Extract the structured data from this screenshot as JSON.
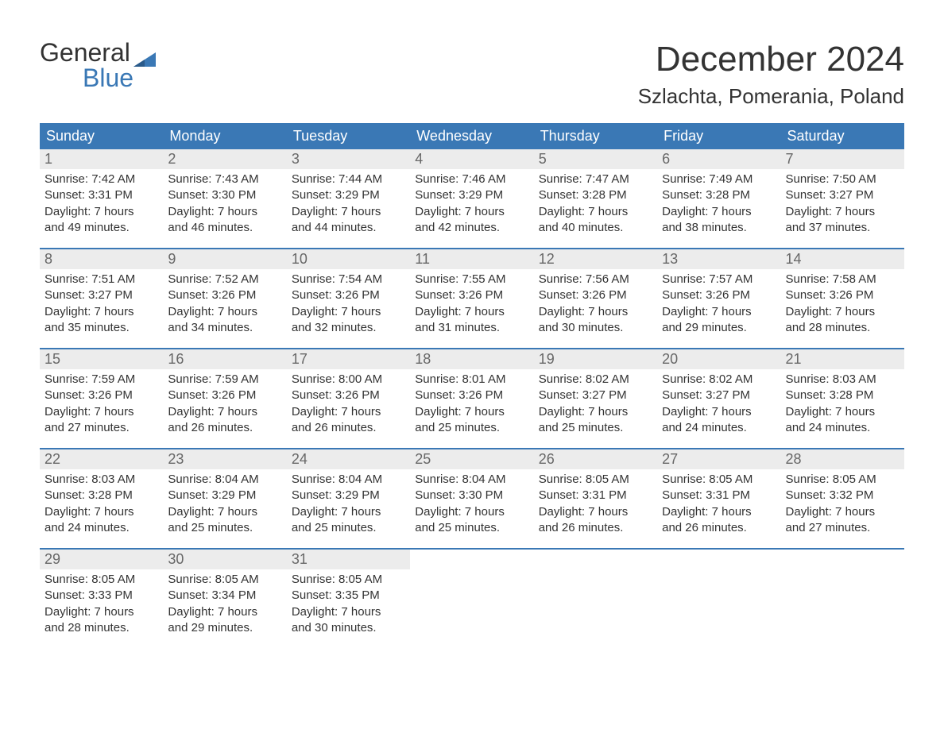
{
  "brand": {
    "word1": "General",
    "word2": "Blue",
    "accent_color": "#3a78b5"
  },
  "title": {
    "month_year": "December 2024",
    "location": "Szlachta, Pomerania, Poland"
  },
  "colors": {
    "header_bg": "#3a78b5",
    "header_text": "#ffffff",
    "daynum_bg": "#ececec",
    "daynum_text": "#676767",
    "body_text": "#333333",
    "page_bg": "#ffffff",
    "week_divider": "#3a78b5"
  },
  "typography": {
    "month_title_fontsize": 44,
    "location_fontsize": 26,
    "dayheader_fontsize": 18,
    "daynum_fontsize": 18,
    "body_fontsize": 15
  },
  "day_headers": [
    "Sunday",
    "Monday",
    "Tuesday",
    "Wednesday",
    "Thursday",
    "Friday",
    "Saturday"
  ],
  "weeks": [
    [
      {
        "num": "1",
        "sunrise": "Sunrise: 7:42 AM",
        "sunset": "Sunset: 3:31 PM",
        "dl1": "Daylight: 7 hours",
        "dl2": "and 49 minutes."
      },
      {
        "num": "2",
        "sunrise": "Sunrise: 7:43 AM",
        "sunset": "Sunset: 3:30 PM",
        "dl1": "Daylight: 7 hours",
        "dl2": "and 46 minutes."
      },
      {
        "num": "3",
        "sunrise": "Sunrise: 7:44 AM",
        "sunset": "Sunset: 3:29 PM",
        "dl1": "Daylight: 7 hours",
        "dl2": "and 44 minutes."
      },
      {
        "num": "4",
        "sunrise": "Sunrise: 7:46 AM",
        "sunset": "Sunset: 3:29 PM",
        "dl1": "Daylight: 7 hours",
        "dl2": "and 42 minutes."
      },
      {
        "num": "5",
        "sunrise": "Sunrise: 7:47 AM",
        "sunset": "Sunset: 3:28 PM",
        "dl1": "Daylight: 7 hours",
        "dl2": "and 40 minutes."
      },
      {
        "num": "6",
        "sunrise": "Sunrise: 7:49 AM",
        "sunset": "Sunset: 3:28 PM",
        "dl1": "Daylight: 7 hours",
        "dl2": "and 38 minutes."
      },
      {
        "num": "7",
        "sunrise": "Sunrise: 7:50 AM",
        "sunset": "Sunset: 3:27 PM",
        "dl1": "Daylight: 7 hours",
        "dl2": "and 37 minutes."
      }
    ],
    [
      {
        "num": "8",
        "sunrise": "Sunrise: 7:51 AM",
        "sunset": "Sunset: 3:27 PM",
        "dl1": "Daylight: 7 hours",
        "dl2": "and 35 minutes."
      },
      {
        "num": "9",
        "sunrise": "Sunrise: 7:52 AM",
        "sunset": "Sunset: 3:26 PM",
        "dl1": "Daylight: 7 hours",
        "dl2": "and 34 minutes."
      },
      {
        "num": "10",
        "sunrise": "Sunrise: 7:54 AM",
        "sunset": "Sunset: 3:26 PM",
        "dl1": "Daylight: 7 hours",
        "dl2": "and 32 minutes."
      },
      {
        "num": "11",
        "sunrise": "Sunrise: 7:55 AM",
        "sunset": "Sunset: 3:26 PM",
        "dl1": "Daylight: 7 hours",
        "dl2": "and 31 minutes."
      },
      {
        "num": "12",
        "sunrise": "Sunrise: 7:56 AM",
        "sunset": "Sunset: 3:26 PM",
        "dl1": "Daylight: 7 hours",
        "dl2": "and 30 minutes."
      },
      {
        "num": "13",
        "sunrise": "Sunrise: 7:57 AM",
        "sunset": "Sunset: 3:26 PM",
        "dl1": "Daylight: 7 hours",
        "dl2": "and 29 minutes."
      },
      {
        "num": "14",
        "sunrise": "Sunrise: 7:58 AM",
        "sunset": "Sunset: 3:26 PM",
        "dl1": "Daylight: 7 hours",
        "dl2": "and 28 minutes."
      }
    ],
    [
      {
        "num": "15",
        "sunrise": "Sunrise: 7:59 AM",
        "sunset": "Sunset: 3:26 PM",
        "dl1": "Daylight: 7 hours",
        "dl2": "and 27 minutes."
      },
      {
        "num": "16",
        "sunrise": "Sunrise: 7:59 AM",
        "sunset": "Sunset: 3:26 PM",
        "dl1": "Daylight: 7 hours",
        "dl2": "and 26 minutes."
      },
      {
        "num": "17",
        "sunrise": "Sunrise: 8:00 AM",
        "sunset": "Sunset: 3:26 PM",
        "dl1": "Daylight: 7 hours",
        "dl2": "and 26 minutes."
      },
      {
        "num": "18",
        "sunrise": "Sunrise: 8:01 AM",
        "sunset": "Sunset: 3:26 PM",
        "dl1": "Daylight: 7 hours",
        "dl2": "and 25 minutes."
      },
      {
        "num": "19",
        "sunrise": "Sunrise: 8:02 AM",
        "sunset": "Sunset: 3:27 PM",
        "dl1": "Daylight: 7 hours",
        "dl2": "and 25 minutes."
      },
      {
        "num": "20",
        "sunrise": "Sunrise: 8:02 AM",
        "sunset": "Sunset: 3:27 PM",
        "dl1": "Daylight: 7 hours",
        "dl2": "and 24 minutes."
      },
      {
        "num": "21",
        "sunrise": "Sunrise: 8:03 AM",
        "sunset": "Sunset: 3:28 PM",
        "dl1": "Daylight: 7 hours",
        "dl2": "and 24 minutes."
      }
    ],
    [
      {
        "num": "22",
        "sunrise": "Sunrise: 8:03 AM",
        "sunset": "Sunset: 3:28 PM",
        "dl1": "Daylight: 7 hours",
        "dl2": "and 24 minutes."
      },
      {
        "num": "23",
        "sunrise": "Sunrise: 8:04 AM",
        "sunset": "Sunset: 3:29 PM",
        "dl1": "Daylight: 7 hours",
        "dl2": "and 25 minutes."
      },
      {
        "num": "24",
        "sunrise": "Sunrise: 8:04 AM",
        "sunset": "Sunset: 3:29 PM",
        "dl1": "Daylight: 7 hours",
        "dl2": "and 25 minutes."
      },
      {
        "num": "25",
        "sunrise": "Sunrise: 8:04 AM",
        "sunset": "Sunset: 3:30 PM",
        "dl1": "Daylight: 7 hours",
        "dl2": "and 25 minutes."
      },
      {
        "num": "26",
        "sunrise": "Sunrise: 8:05 AM",
        "sunset": "Sunset: 3:31 PM",
        "dl1": "Daylight: 7 hours",
        "dl2": "and 26 minutes."
      },
      {
        "num": "27",
        "sunrise": "Sunrise: 8:05 AM",
        "sunset": "Sunset: 3:31 PM",
        "dl1": "Daylight: 7 hours",
        "dl2": "and 26 minutes."
      },
      {
        "num": "28",
        "sunrise": "Sunrise: 8:05 AM",
        "sunset": "Sunset: 3:32 PM",
        "dl1": "Daylight: 7 hours",
        "dl2": "and 27 minutes."
      }
    ],
    [
      {
        "num": "29",
        "sunrise": "Sunrise: 8:05 AM",
        "sunset": "Sunset: 3:33 PM",
        "dl1": "Daylight: 7 hours",
        "dl2": "and 28 minutes."
      },
      {
        "num": "30",
        "sunrise": "Sunrise: 8:05 AM",
        "sunset": "Sunset: 3:34 PM",
        "dl1": "Daylight: 7 hours",
        "dl2": "and 29 minutes."
      },
      {
        "num": "31",
        "sunrise": "Sunrise: 8:05 AM",
        "sunset": "Sunset: 3:35 PM",
        "dl1": "Daylight: 7 hours",
        "dl2": "and 30 minutes."
      },
      {
        "empty": true
      },
      {
        "empty": true
      },
      {
        "empty": true
      },
      {
        "empty": true
      }
    ]
  ]
}
